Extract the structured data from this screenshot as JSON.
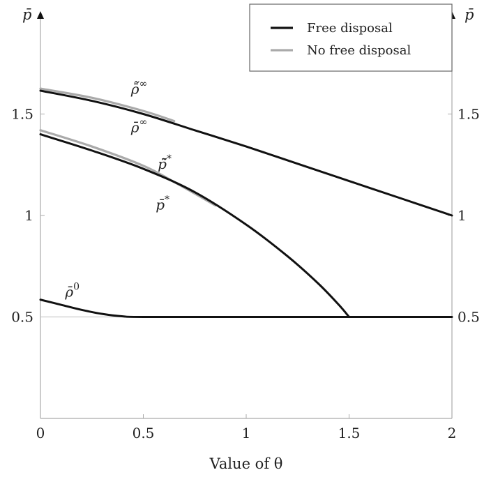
{
  "chart_data": {
    "type": "line",
    "xlabel": "Value of θ",
    "ylabel_left": "p̄",
    "ylabel_right": "p̄",
    "xlim": [
      0,
      2
    ],
    "ylim": [
      0,
      2
    ],
    "x_ticks": [
      0,
      0.5,
      1,
      1.5,
      2
    ],
    "x_tick_labels": [
      "0",
      "0.5",
      "1",
      "1.5",
      "2"
    ],
    "y_ticks": [
      0.5,
      1,
      1.5
    ],
    "y_tick_labels": [
      "0.5",
      "1",
      "1.5"
    ],
    "grid": false,
    "legend": {
      "position": "top-right",
      "entries": [
        {
          "label": "Free disposal",
          "color": "#111111"
        },
        {
          "label": "No free disposal",
          "color": "#aaaaaa"
        }
      ]
    },
    "series": [
      {
        "id": "rho-inf-free",
        "group": "Free disposal",
        "color": "#111111",
        "x": [
          0,
          0.25,
          0.5,
          0.75,
          1,
          1.25,
          1.5,
          1.75,
          2
        ],
        "y": [
          1.615,
          1.565,
          1.5,
          1.42,
          1.34,
          1.255,
          1.17,
          1.085,
          1.0
        ]
      },
      {
        "id": "rho-inf-nofree",
        "group": "No free disposal",
        "color": "#aaaaaa",
        "x": [
          0,
          0.25,
          0.5,
          0.65
        ],
        "y": [
          1.625,
          1.58,
          1.515,
          1.465
        ]
      },
      {
        "id": "p-star-free",
        "group": "Free disposal",
        "color": "#111111",
        "x": [
          0,
          0.25,
          0.5,
          0.75,
          1.0,
          1.2,
          1.35,
          1.45,
          1.5
        ],
        "y": [
          1.4,
          1.32,
          1.23,
          1.115,
          0.955,
          0.8,
          0.665,
          0.56,
          0.5
        ]
      },
      {
        "id": "p-star-nofree",
        "group": "No free disposal",
        "color": "#aaaaaa",
        "x": [
          0,
          0.25,
          0.5,
          0.65,
          0.85
        ],
        "y": [
          1.42,
          1.34,
          1.245,
          1.165,
          1.05
        ]
      },
      {
        "id": "rho-zero-free",
        "group": "Free disposal",
        "color": "#111111",
        "x": [
          0,
          0.1,
          0.2,
          0.3,
          0.4,
          0.5,
          1.0,
          1.5,
          2.0
        ],
        "y": [
          0.585,
          0.56,
          0.535,
          0.515,
          0.503,
          0.5,
          0.5,
          0.5,
          0.5
        ]
      }
    ],
    "annotations": [
      {
        "id": "lbl-rho-inf-tilde",
        "base": "ρ̄̃",
        "sup": "∞",
        "x": 0.44,
        "y": 1.6
      },
      {
        "id": "lbl-rho-inf",
        "base": "ρ̄",
        "sup": "∞",
        "x": 0.44,
        "y": 1.41
      },
      {
        "id": "lbl-p-star-tilde",
        "base": "p̄̃",
        "sup": "*",
        "x": 0.57,
        "y": 1.23
      },
      {
        "id": "lbl-p-star",
        "base": "p̄",
        "sup": "*",
        "x": 0.56,
        "y": 1.03
      },
      {
        "id": "lbl-rho-zero",
        "base": "ρ̄",
        "sup": "0",
        "x": 0.12,
        "y": 0.6
      }
    ]
  }
}
